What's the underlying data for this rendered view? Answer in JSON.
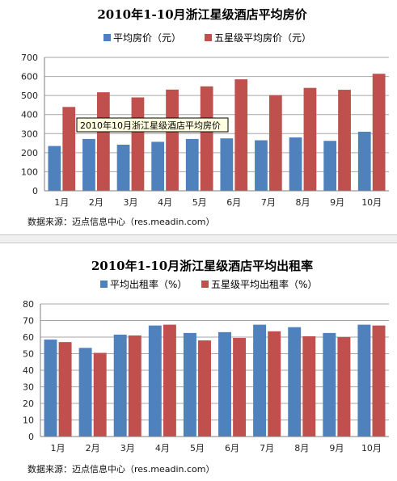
{
  "source_note": "数据来源：迈点信息中心（res.meadin.com）",
  "tooltip": "2010年10月浙江星级酒店平均房价",
  "colors": {
    "series1": "#4f81bd",
    "series2": "#c0504d",
    "grid": "#a6a6a6",
    "axis": "#7f7f7f"
  },
  "chart_data": [
    {
      "type": "bar",
      "title": "2010年1-10月浙江星级酒店平均房价",
      "categories": [
        "1月",
        "2月",
        "3月",
        "4月",
        "5月",
        "6月",
        "7月",
        "8月",
        "9月",
        "10月"
      ],
      "series": [
        {
          "name": "平均房价（元）",
          "values": [
            235,
            272,
            242,
            257,
            272,
            275,
            265,
            280,
            262,
            310
          ]
        },
        {
          "name": "五星级平均房价（元）",
          "values": [
            440,
            517,
            490,
            531,
            548,
            585,
            502,
            540,
            530,
            614
          ]
        }
      ],
      "ylim": [
        0,
        700
      ],
      "yticks": [
        0,
        100,
        200,
        300,
        400,
        500,
        600,
        700
      ],
      "grid": true,
      "legend": "top"
    },
    {
      "type": "bar",
      "title": "2010年1-10月浙江星级酒店平均出租率",
      "categories": [
        "1月",
        "2月",
        "3月",
        "4月",
        "5月",
        "6月",
        "7月",
        "8月",
        "9月",
        "10月"
      ],
      "series": [
        {
          "name": "平均出租率（%）",
          "values": [
            58.5,
            53.5,
            61.5,
            67,
            62.5,
            63,
            67.5,
            66,
            62.5,
            67.5
          ]
        },
        {
          "name": "五星级平均出租率（%）",
          "values": [
            57,
            50.5,
            61,
            67.5,
            58,
            59.5,
            63.5,
            60.5,
            60,
            67
          ]
        }
      ],
      "ylim": [
        0,
        80
      ],
      "yticks": [
        0,
        10,
        20,
        30,
        40,
        50,
        60,
        70,
        80
      ],
      "grid": true,
      "legend": "top"
    }
  ]
}
